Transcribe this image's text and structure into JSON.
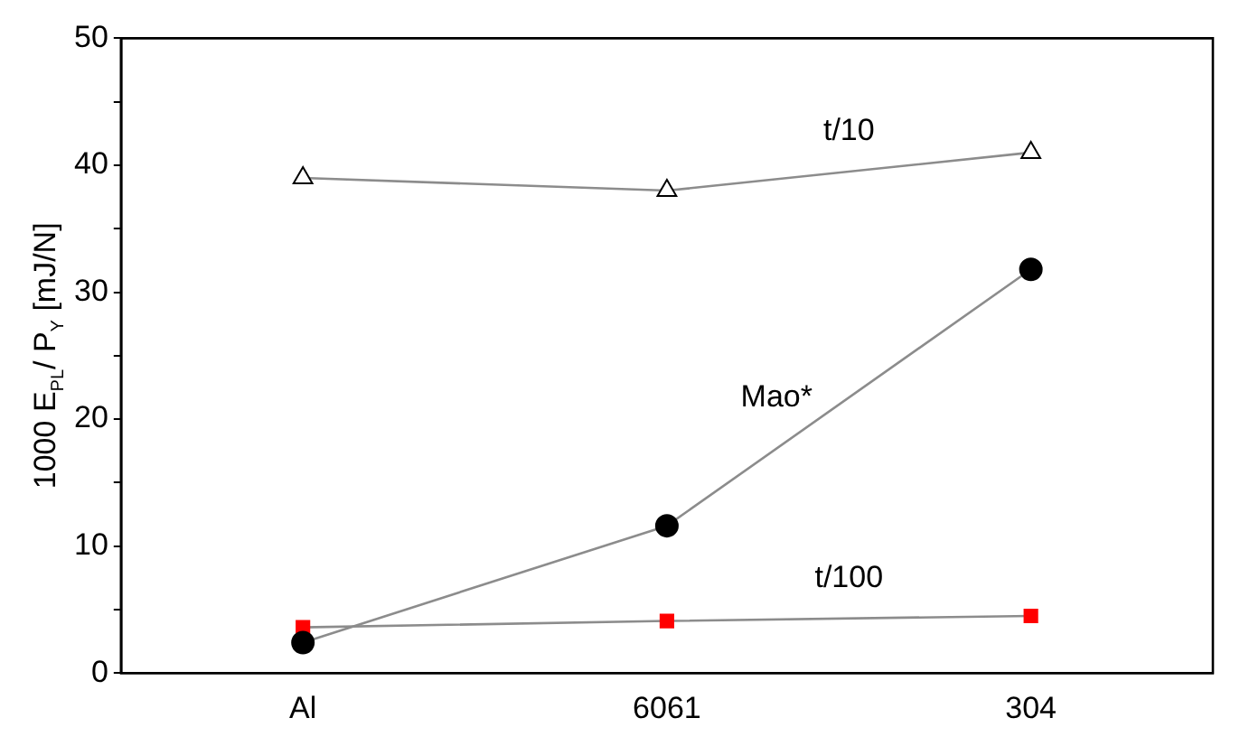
{
  "chart_data": {
    "type": "line",
    "categories": [
      "Al",
      "6061",
      "304"
    ],
    "ylabel": "1000 E$_{PL}$/ P$_{Y}$ [mJ/N]",
    "ylim": [
      0,
      50
    ],
    "yticks": [
      0,
      {
        "value": 5,
        "label": null
      },
      10,
      {
        "value": 15,
        "label": null
      },
      20,
      {
        "value": 25,
        "label": null
      },
      30,
      {
        "value": 35,
        "label": null
      },
      40,
      {
        "value": 45,
        "label": null
      },
      50
    ],
    "grid": false,
    "legend": false,
    "series": [
      {
        "name": "t/10",
        "color": "#000000",
        "marker": "triangle",
        "values": [
          39,
          38,
          41
        ]
      },
      {
        "name": "Mao*",
        "color": "#000000",
        "marker": "circle",
        "values": [
          2.4,
          11.6,
          31.8
        ]
      },
      {
        "name": "t/100",
        "color": "#ff0000",
        "marker": "square",
        "values": [
          3.6,
          4.1,
          4.5
        ]
      }
    ]
  }
}
